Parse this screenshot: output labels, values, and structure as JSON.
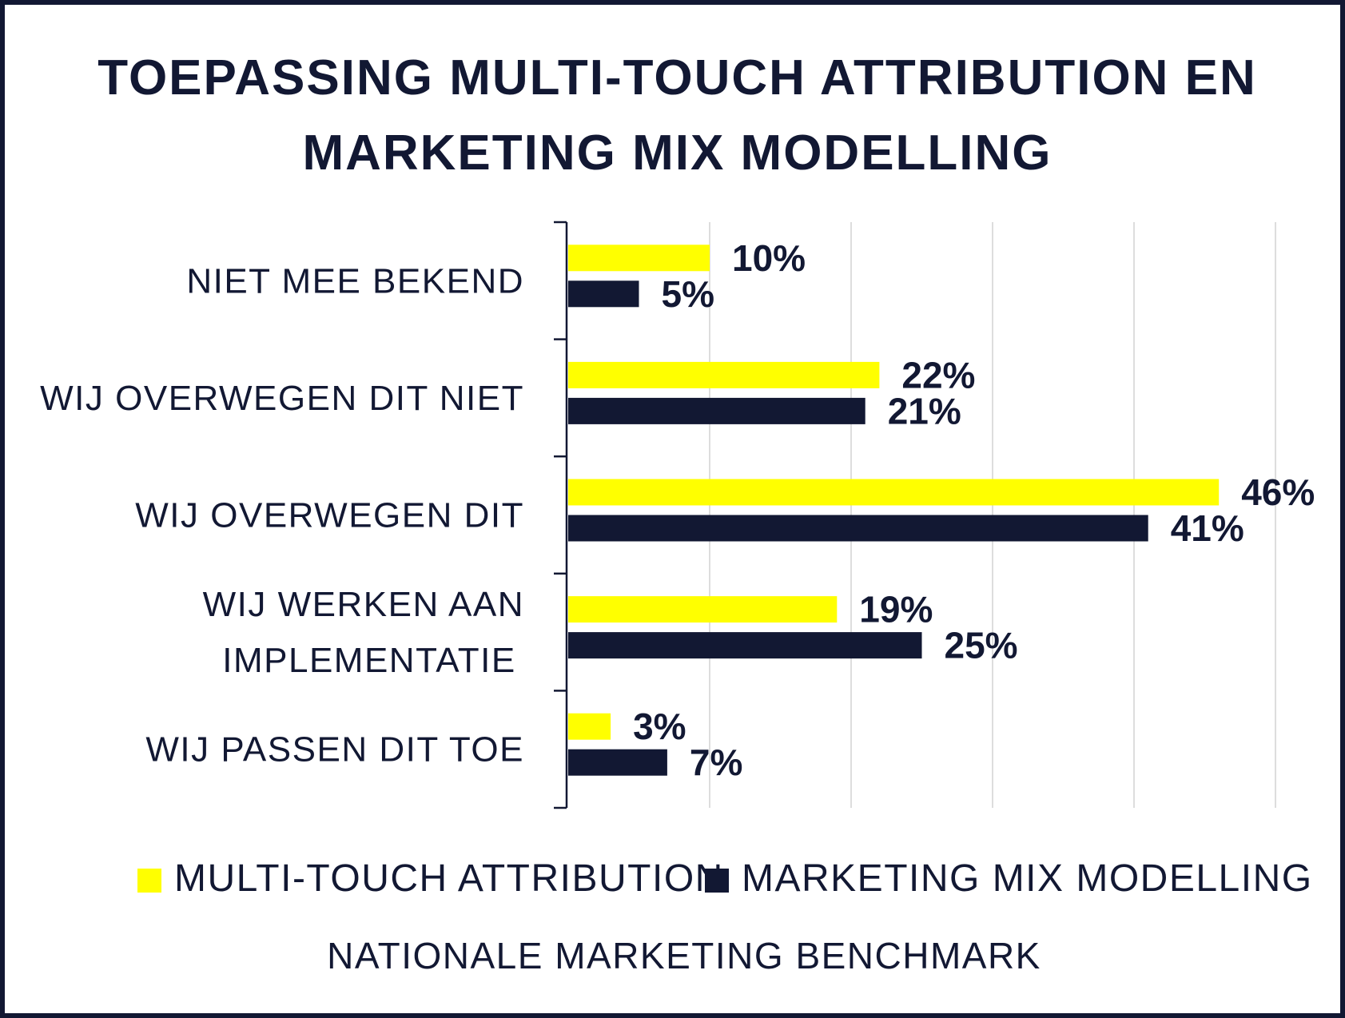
{
  "chart_data": {
    "type": "bar",
    "orientation": "horizontal",
    "title": "TOEPASSING MULTI-TOUCH ATTRIBUTION EN MARKETING MIX MODELLING",
    "title_lines": [
      "TOEPASSING MULTI-TOUCH ATTRIBUTION EN",
      "MARKETING MIX MODELLING"
    ],
    "categories": [
      [
        "NIET MEE BEKEND"
      ],
      [
        "WIJ OVERWEGEN DIT NIET"
      ],
      [
        "WIJ OVERWEGEN DIT"
      ],
      [
        "WIJ WERKEN AAN",
        "IMPLEMENTATIE"
      ],
      [
        "WIJ PASSEN DIT TOE"
      ]
    ],
    "series": [
      {
        "name": "MULTI-TOUCH ATTRIBUTION",
        "color": "#ffff00",
        "values": [
          10,
          22,
          46,
          19,
          3
        ],
        "labels": [
          "10%",
          "22%",
          "46%",
          "19%",
          "3%"
        ]
      },
      {
        "name": "MARKETING MIX MODELLING",
        "color": "#121833",
        "values": [
          5,
          21,
          41,
          25,
          7
        ],
        "labels": [
          "5%",
          "21%",
          "41%",
          "25%",
          "7%"
        ]
      }
    ],
    "xlim": [
      0,
      50
    ],
    "grid": true,
    "legend_position": "bottom",
    "source": "NATIONALE MARKETING BENCHMARK"
  }
}
